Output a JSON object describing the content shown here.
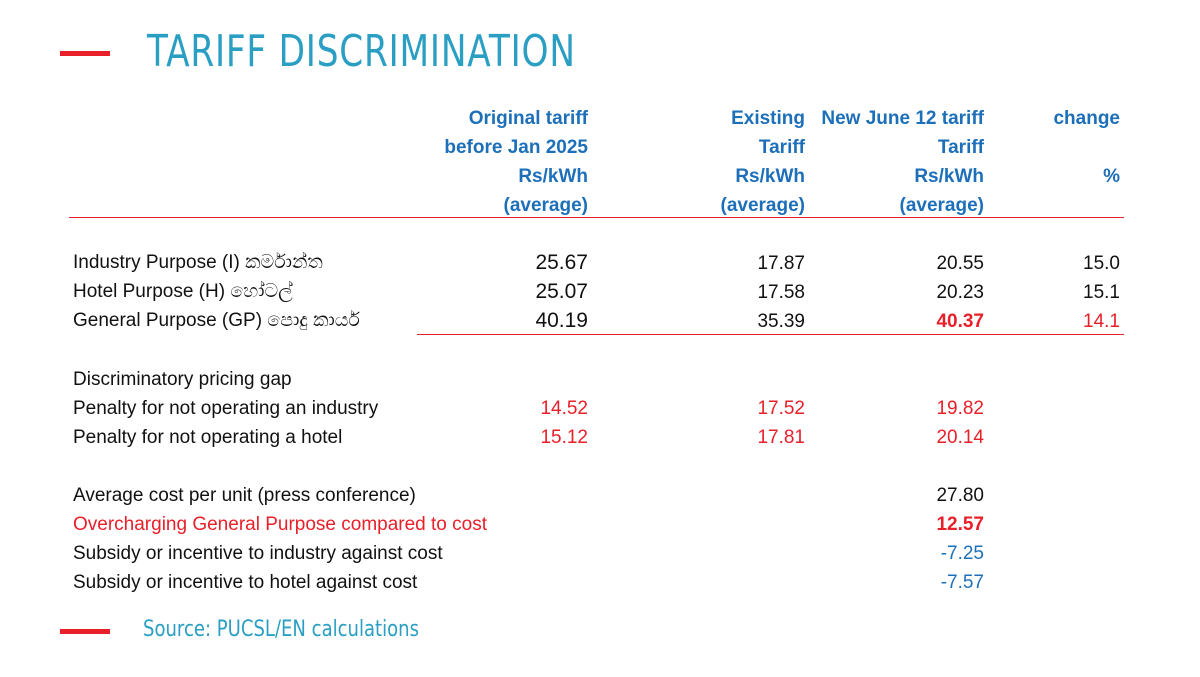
{
  "title": "TARIFF  DISCRIMINATION",
  "source": "Source: PUCSL/EN  calculations",
  "headers": {
    "original": [
      "Original tariff",
      "before Jan 2025",
      "Rs/kWh",
      "(average)"
    ],
    "existing": [
      "Existing",
      "Tariff",
      "Rs/kWh",
      "(average)"
    ],
    "new": [
      "New June 12 tariff",
      "Tariff",
      "Rs/kWh",
      "(average)"
    ],
    "change": [
      "change",
      "",
      "%",
      ""
    ]
  },
  "purposes": [
    {
      "label": "Industry Purpose (I) කර්මාන්ත",
      "original": "25.67",
      "existing": "17.87",
      "new": "20.55",
      "change": "15.0"
    },
    {
      "label": "Hotel Purpose (H) හෝටල්",
      "original": "25.07",
      "existing": "17.58",
      "new": "20.23",
      "change": "15.1"
    },
    {
      "label": "General Purpose (GP) පොදු කාර්ය",
      "original": "40.19",
      "existing": "35.39",
      "new": "40.37",
      "change": "14.1"
    }
  ],
  "gap": {
    "heading": "Discriminatory pricing gap",
    "rows": [
      {
        "label": "Penalty for not operating an industry",
        "original": "14.52",
        "existing": "17.52",
        "new": "19.82"
      },
      {
        "label": "Penalty for not operating a hotel",
        "original": "15.12",
        "existing": "17.81",
        "new": "20.14"
      }
    ]
  },
  "cost": {
    "rows": [
      {
        "label": "Average cost per unit (press conference)",
        "new": "27.80"
      },
      {
        "label": "Overcharging General Purpose compared to cost",
        "new": "12.57"
      },
      {
        "label": "Subsidy or incentive to industry against cost",
        "new": "-7.25"
      },
      {
        "label": "Subsidy or incentive to hotel against cost",
        "new": "-7.57"
      }
    ]
  },
  "colors": {
    "accent": "#e8202a",
    "title": "#2a9fc3",
    "header": "#1c6fb8"
  }
}
